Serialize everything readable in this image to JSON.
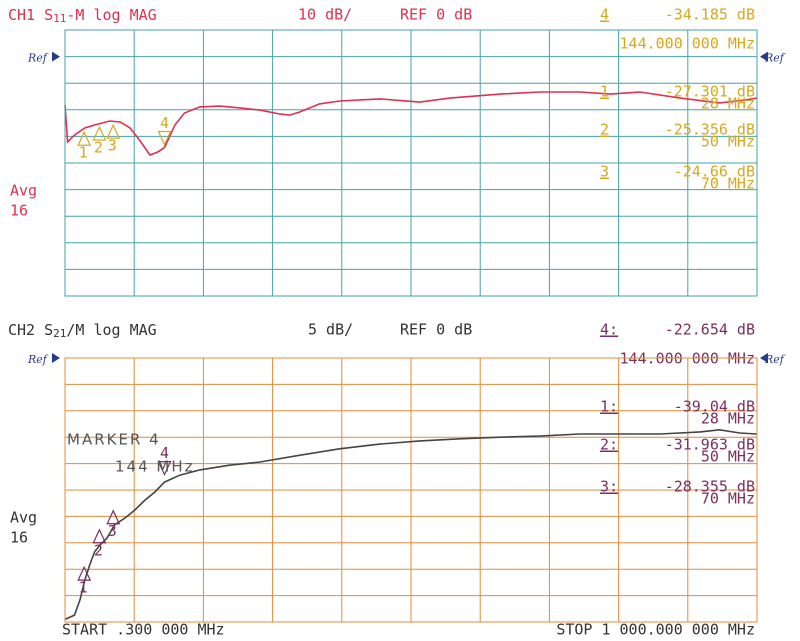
{
  "chart_data": [
    {
      "type": "line",
      "channel": "CH1",
      "param": "S",
      "param_sub": "11",
      "format": "-M log MAG",
      "scale": "10 dB/",
      "ref": "REF 0 dB",
      "ref_mark": "Ref",
      "avg_label": "Avg",
      "avg_value": "16",
      "xlim": [
        0.3,
        1000
      ],
      "ylim": [
        10,
        -90
      ],
      "yticks": [
        10,
        0,
        -10,
        -20,
        -30,
        -40,
        -50,
        -60,
        -70,
        -80,
        -90
      ],
      "grid": true,
      "series": [
        {
          "name": "S11",
          "color": "#e0304e",
          "x": [
            0.3,
            4,
            14,
            29,
            43,
            65,
            80,
            94,
            108,
            123,
            134,
            144,
            159,
            173,
            195,
            224,
            253,
            282,
            311,
            325,
            340,
            368,
            397,
            455,
            513,
            556,
            629,
            686,
            744,
            788,
            831,
            889,
            946,
            983,
            1000
          ],
          "values": [
            -18.2,
            -32.1,
            -29.5,
            -26.8,
            -25.7,
            -24.2,
            -24.6,
            -26.8,
            -31.4,
            -37.0,
            -35.9,
            -34.2,
            -25.7,
            -21.2,
            -18.9,
            -18.6,
            -19.3,
            -20.1,
            -21.6,
            -22.0,
            -20.8,
            -17.8,
            -16.7,
            -15.9,
            -17.1,
            -15.6,
            -14.1,
            -13.3,
            -13.3,
            -14.1,
            -13.3,
            -15.6,
            -17.4,
            -16.3,
            -15.6
          ]
        }
      ],
      "marker_color": "#d6a820",
      "markers": [
        {
          "id": "4",
          "readout_id": "4",
          "x": 144,
          "x_label": "144.000 000 MHz",
          "value": -34.185,
          "value_label": "-34.185 dB"
        },
        {
          "id": "1",
          "readout_id": "1",
          "x": 28,
          "x_label": "28 MHz",
          "value": -27.301,
          "value_label": "-27.301 dB"
        },
        {
          "id": "2",
          "readout_id": "2",
          "x": 50,
          "x_label": "50 MHz",
          "value": -25.356,
          "value_label": "-25.356 dB"
        },
        {
          "id": "3",
          "readout_id": "3",
          "x": 70,
          "x_label": "70 MHz",
          "value": -24.66,
          "value_label": "-24.66 dB"
        }
      ]
    },
    {
      "type": "line",
      "channel": "CH2",
      "param": "S",
      "param_sub": "21",
      "format": "/M log MAG",
      "scale": "5 dB/",
      "ref": "REF 0 dB",
      "ref_mark": "Ref",
      "avg_label": "Avg",
      "avg_value": "16",
      "annotations": [
        "MARKER 4",
        "144 MHz"
      ],
      "x_start_label": "START .300 000 MHz",
      "x_stop_label": "STOP 1 000.000 000 MHz",
      "xlim": [
        0.3,
        1000
      ],
      "ylim": [
        0,
        -50
      ],
      "yticks": [
        0,
        -5,
        -10,
        -15,
        -20,
        -25,
        -30,
        -35,
        -40,
        -45,
        -50
      ],
      "grid": true,
      "series": [
        {
          "name": "S21",
          "color": "#444444",
          "x": [
            0.3,
            14,
            22,
            29,
            36,
            43,
            51,
            61,
            72,
            87,
            101,
            116,
            130,
            144,
            166,
            195,
            238,
            282,
            340,
            397,
            455,
            513,
            571,
            629,
            686,
            744,
            802,
            860,
            918,
            946,
            975,
            1000
          ],
          "values": [
            -49.5,
            -48.7,
            -45.8,
            -42.0,
            -39.2,
            -36.7,
            -35.4,
            -34.1,
            -31.6,
            -30.3,
            -28.8,
            -26.9,
            -25.4,
            -23.5,
            -22.2,
            -21.2,
            -20.3,
            -19.7,
            -18.4,
            -17.2,
            -16.3,
            -15.7,
            -15.3,
            -15.0,
            -14.8,
            -14.4,
            -14.4,
            -14.4,
            -14.0,
            -13.6,
            -14.2,
            -14.4
          ]
        }
      ],
      "marker_color": "#7a2f5c",
      "markers": [
        {
          "id": "4",
          "readout_id": "4:",
          "x": 144,
          "x_label": "144.000 000 MHz",
          "value": -22.654,
          "value_label": "-22.654 dB"
        },
        {
          "id": "1",
          "readout_id": "1:",
          "x": 28,
          "x_label": "28 MHz",
          "value": -39.04,
          "value_label": "-39.04 dB"
        },
        {
          "id": "2",
          "readout_id": "2:",
          "x": 50,
          "x_label": "50 MHz",
          "value": -31.963,
          "value_label": "-31.963 dB"
        },
        {
          "id": "3",
          "readout_id": "3:",
          "x": 70,
          "x_label": "70 MHz",
          "value": -28.355,
          "value_label": "-28.355 dB"
        }
      ]
    }
  ]
}
